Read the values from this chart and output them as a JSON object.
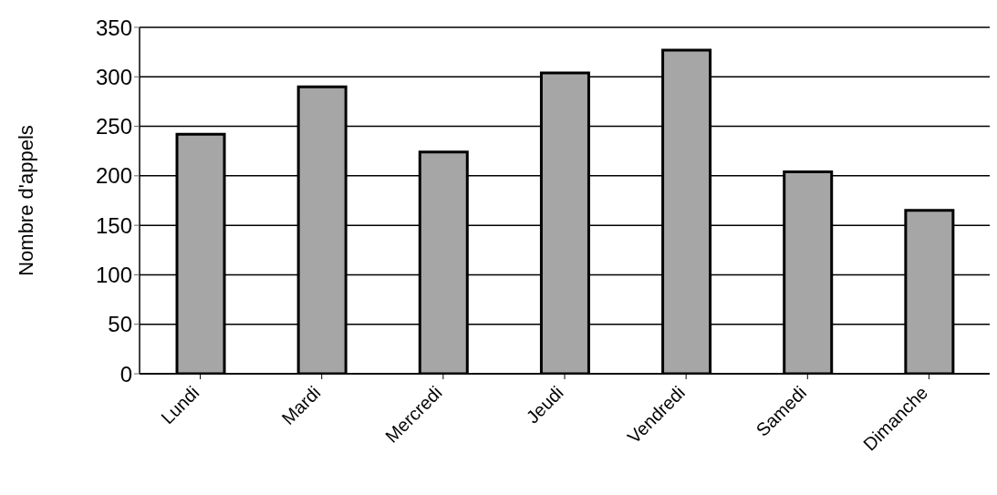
{
  "chart_data": {
    "type": "bar",
    "ylabel": "Nombre d'appels",
    "categories": [
      "Lundi",
      "Mardi",
      "Mercredi",
      "Jeudi",
      "Vendredi",
      "Samedi",
      "Dimanche"
    ],
    "values": [
      242,
      290,
      224,
      304,
      327,
      204,
      165
    ],
    "color": "#a6a6a6",
    "ylim": [
      0,
      350
    ],
    "yticks": [
      0,
      50,
      100,
      150,
      200,
      250,
      300,
      350
    ],
    "grid": "y"
  }
}
